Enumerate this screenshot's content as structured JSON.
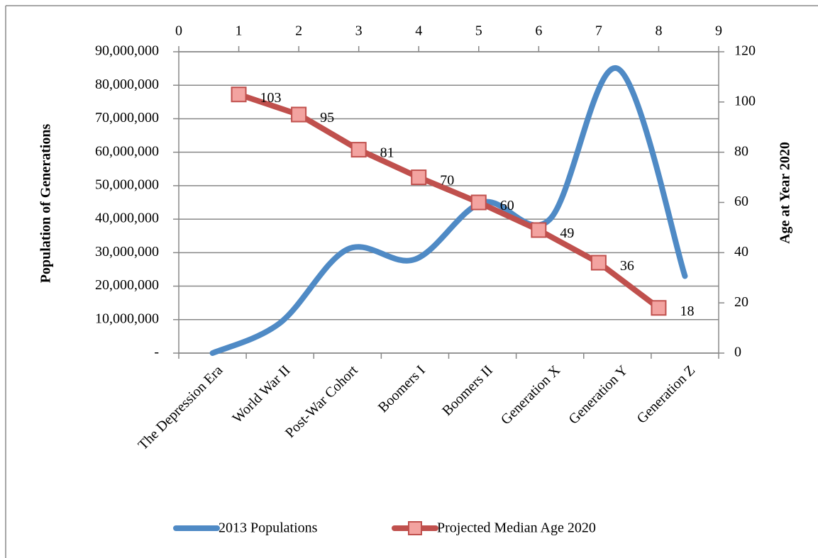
{
  "chart_data": {
    "type": "line",
    "categories": [
      "The Depression Era",
      "World War II",
      "Post-War Cohort",
      "Boomers I",
      "Boomers II",
      "Generation X",
      "Generation Y",
      "Generation Z"
    ],
    "y_label": "Population of Generations",
    "y2_label": "Age at Year 2020",
    "ylim": [
      0,
      90000000
    ],
    "yticks": [
      {
        "value": 0,
        "label": "-"
      },
      {
        "value": 10000000,
        "label": "10,000,000"
      },
      {
        "value": 20000000,
        "label": "20,000,000"
      },
      {
        "value": 30000000,
        "label": "30,000,000"
      },
      {
        "value": 40000000,
        "label": "40,000,000"
      },
      {
        "value": 50000000,
        "label": "50,000,000"
      },
      {
        "value": 60000000,
        "label": "60,000,000"
      },
      {
        "value": 70000000,
        "label": "70,000,000"
      },
      {
        "value": 80000000,
        "label": "80,000,000"
      },
      {
        "value": 90000000,
        "label": "90,000,000"
      }
    ],
    "y2lim": [
      0,
      120
    ],
    "y2ticks": [
      0,
      20,
      40,
      60,
      80,
      100,
      120
    ],
    "x2lim": [
      0,
      9
    ],
    "x2ticks": [
      0,
      1,
      2,
      3,
      4,
      5,
      6,
      7,
      8,
      9
    ],
    "grid": true,
    "legend": "bottom",
    "series": [
      {
        "name": "2013 Populations",
        "color": "#4f8ac5",
        "smooth": true,
        "values": [
          0,
          9000000,
          31000000,
          28000000,
          45000000,
          40000000,
          85000000,
          23000000
        ]
      },
      {
        "name": "Projected Median Age 2020",
        "color": "#c0504d",
        "marker": "square",
        "axis": "y2",
        "xaxis": "x2",
        "x": [
          1,
          2,
          3,
          4,
          5,
          6,
          7,
          8
        ],
        "values": [
          103,
          95,
          81,
          70,
          60,
          49,
          36,
          18
        ]
      }
    ]
  }
}
